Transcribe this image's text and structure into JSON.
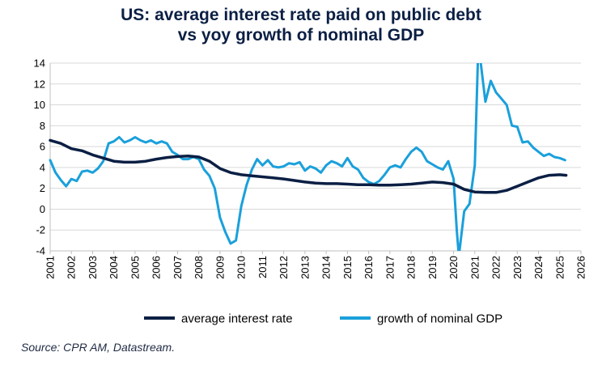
{
  "title": {
    "line1": "US: average interest rate paid on public debt",
    "line2": "vs yoy growth of nominal GDP"
  },
  "source": "Source: CPR AM, Datastream.",
  "colors": {
    "interest": "#0b1f44",
    "gdp": "#1aa0db",
    "grid": "#d9d9d9",
    "axis": "#bfbfbf",
    "title": "#0b1f44"
  },
  "chart_data": {
    "type": "line",
    "title": "US: average interest rate paid on public debt vs yoy growth of nominal GDP",
    "xlim": [
      2001,
      2026
    ],
    "ylim": [
      -4,
      14
    ],
    "x_ticks": [
      "2001",
      "2002",
      "2003",
      "2004",
      "2005",
      "2006",
      "2007",
      "2008",
      "2009",
      "2010",
      "2011",
      "2012",
      "2013",
      "2014",
      "2015",
      "2016",
      "2017",
      "2018",
      "2019",
      "2020",
      "2021",
      "2022",
      "2023",
      "2024",
      "2025",
      "2026"
    ],
    "y_ticks": [
      "-4",
      "-2",
      "0",
      "2",
      "4",
      "6",
      "8",
      "10",
      "12",
      "14"
    ],
    "grid": "horizontal",
    "legend_position": "bottom",
    "series": [
      {
        "name": "average interest rate",
        "color": "#0b1f44",
        "x": [
          2001.0,
          2001.5,
          2002.0,
          2002.5,
          2003.0,
          2003.5,
          2004.0,
          2004.5,
          2005.0,
          2005.5,
          2006.0,
          2006.5,
          2007.0,
          2007.5,
          2008.0,
          2008.5,
          2009.0,
          2009.5,
          2010.0,
          2010.5,
          2011.0,
          2011.5,
          2012.0,
          2012.5,
          2013.0,
          2013.5,
          2014.0,
          2014.5,
          2015.0,
          2015.5,
          2016.0,
          2016.5,
          2017.0,
          2017.5,
          2018.0,
          2018.5,
          2019.0,
          2019.5,
          2020.0,
          2020.5,
          2021.0,
          2021.5,
          2022.0,
          2022.5,
          2023.0,
          2023.5,
          2024.0,
          2024.5,
          2025.0,
          2025.3
        ],
        "values": [
          6.6,
          6.3,
          5.8,
          5.6,
          5.2,
          4.9,
          4.6,
          4.5,
          4.5,
          4.6,
          4.8,
          4.95,
          5.05,
          5.1,
          5.0,
          4.6,
          3.9,
          3.5,
          3.3,
          3.2,
          3.1,
          3.0,
          2.9,
          2.75,
          2.6,
          2.5,
          2.45,
          2.45,
          2.4,
          2.35,
          2.35,
          2.3,
          2.3,
          2.35,
          2.4,
          2.5,
          2.6,
          2.55,
          2.4,
          1.9,
          1.65,
          1.6,
          1.6,
          1.8,
          2.2,
          2.6,
          3.0,
          3.25,
          3.3,
          3.25
        ]
      },
      {
        "name": "growth of nominal GDP",
        "color": "#1aa0db",
        "x": [
          2001.0,
          2001.25,
          2001.5,
          2001.75,
          2002.0,
          2002.25,
          2002.5,
          2002.75,
          2003.0,
          2003.25,
          2003.5,
          2003.75,
          2004.0,
          2004.25,
          2004.5,
          2004.75,
          2005.0,
          2005.25,
          2005.5,
          2005.75,
          2006.0,
          2006.25,
          2006.5,
          2006.75,
          2007.0,
          2007.25,
          2007.5,
          2007.75,
          2008.0,
          2008.25,
          2008.5,
          2008.75,
          2009.0,
          2009.25,
          2009.5,
          2009.75,
          2010.0,
          2010.25,
          2010.5,
          2010.75,
          2011.0,
          2011.25,
          2011.5,
          2011.75,
          2012.0,
          2012.25,
          2012.5,
          2012.75,
          2013.0,
          2013.25,
          2013.5,
          2013.75,
          2014.0,
          2014.25,
          2014.5,
          2014.75,
          2015.0,
          2015.25,
          2015.5,
          2015.75,
          2016.0,
          2016.25,
          2016.5,
          2016.75,
          2017.0,
          2017.25,
          2017.5,
          2017.75,
          2018.0,
          2018.25,
          2018.5,
          2018.75,
          2019.0,
          2019.25,
          2019.5,
          2019.75,
          2020.0,
          2020.15,
          2020.25,
          2020.5,
          2020.75,
          2021.0,
          2021.15,
          2021.25,
          2021.5,
          2021.75,
          2022.0,
          2022.25,
          2022.5,
          2022.75,
          2023.0,
          2023.25,
          2023.5,
          2023.75,
          2024.0,
          2024.25,
          2024.5,
          2024.75,
          2025.0,
          2025.25
        ],
        "values": [
          4.7,
          3.5,
          2.8,
          2.2,
          2.9,
          2.7,
          3.6,
          3.7,
          3.5,
          3.9,
          4.6,
          6.3,
          6.5,
          6.9,
          6.4,
          6.6,
          6.9,
          6.6,
          6.4,
          6.6,
          6.3,
          6.5,
          6.3,
          5.5,
          5.2,
          4.8,
          4.8,
          5.0,
          4.8,
          3.8,
          3.2,
          2.0,
          -0.8,
          -2.2,
          -3.3,
          -3.0,
          0.3,
          2.3,
          3.8,
          4.8,
          4.2,
          4.7,
          4.1,
          4.0,
          4.1,
          4.4,
          4.3,
          4.5,
          3.7,
          4.1,
          3.9,
          3.5,
          4.2,
          4.6,
          4.4,
          4.1,
          4.9,
          4.1,
          3.8,
          3.0,
          2.6,
          2.4,
          2.7,
          3.3,
          4.0,
          4.2,
          4.0,
          4.8,
          5.5,
          5.9,
          5.5,
          4.6,
          4.3,
          4.0,
          3.8,
          4.6,
          2.9,
          -2.0,
          -4.5,
          -0.2,
          0.5,
          4.2,
          14.5,
          14.5,
          10.3,
          12.3,
          11.2,
          10.6,
          10.0,
          8.0,
          7.9,
          6.4,
          6.5,
          5.9,
          5.5,
          5.1,
          5.3,
          5.0,
          4.9,
          4.7
        ]
      }
    ]
  }
}
